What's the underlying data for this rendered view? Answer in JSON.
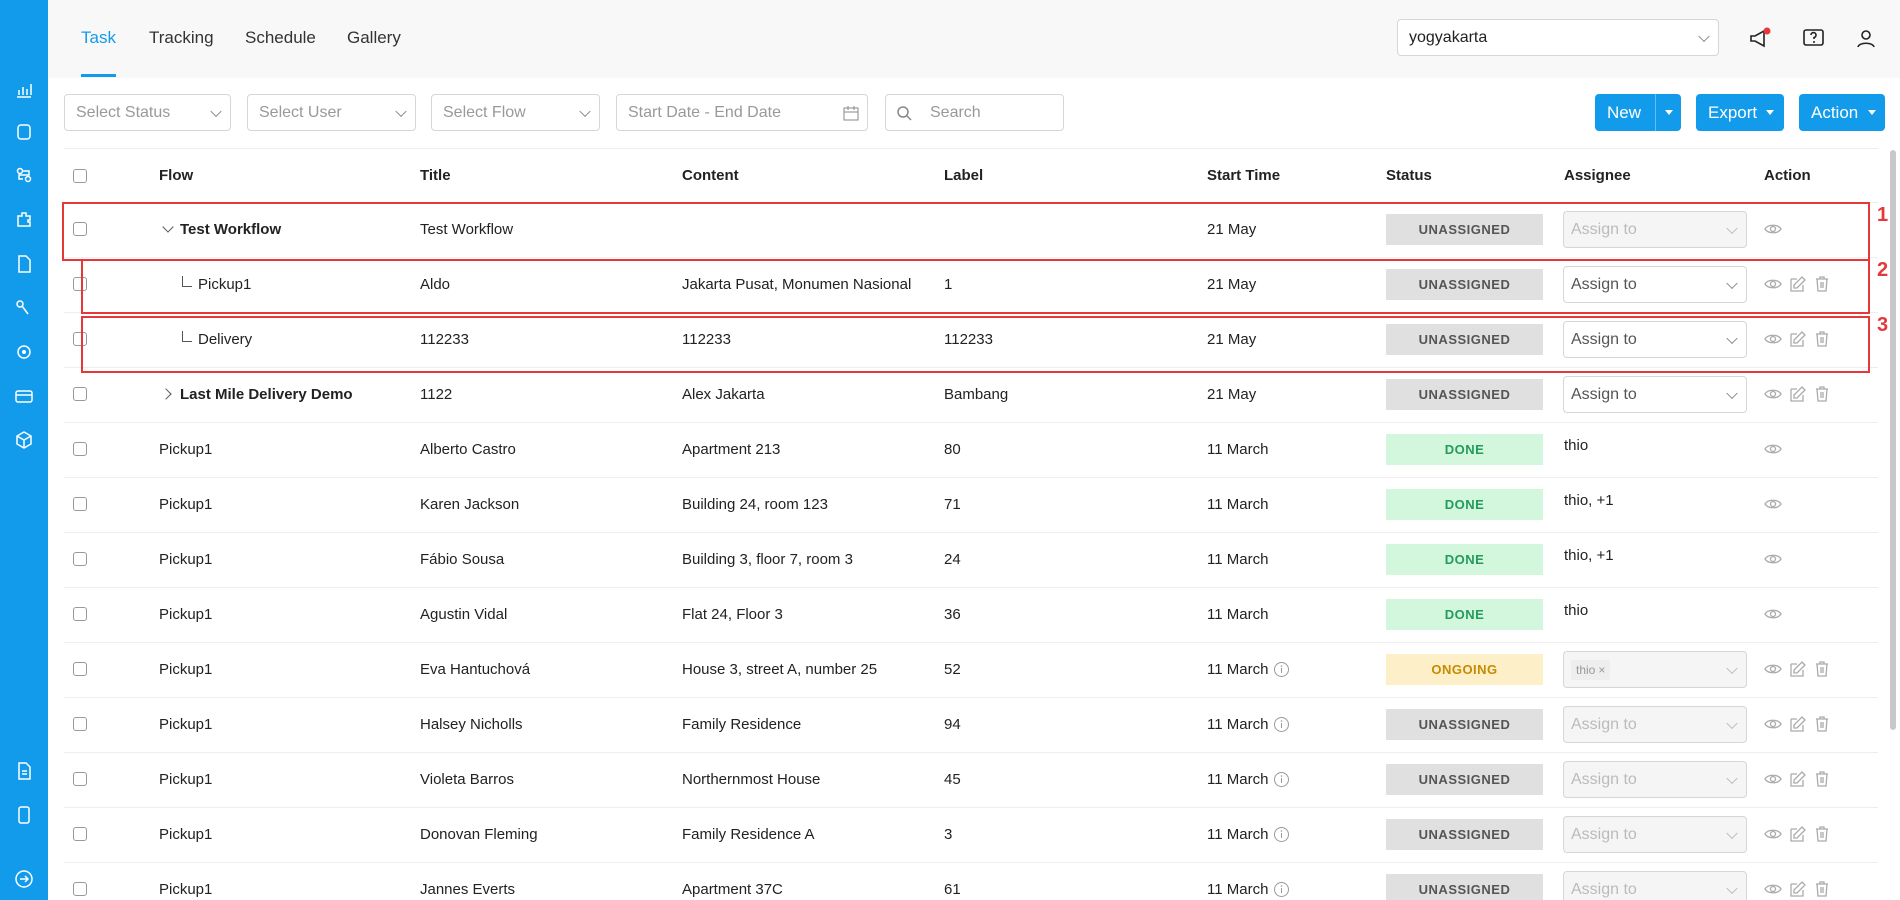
{
  "nav": {
    "tabs": [
      "Task",
      "Tracking",
      "Schedule",
      "Gallery"
    ],
    "active": 0,
    "location": "yogyakarta"
  },
  "filters": {
    "status": "Select Status",
    "user": "Select User",
    "flow": "Select Flow",
    "date": "Start Date - End Date",
    "search": "Search"
  },
  "buttons": {
    "new": "New",
    "export": "Export",
    "action": "Action"
  },
  "table": {
    "headers": [
      "Flow",
      "Title",
      "Content",
      "Label",
      "Start Time",
      "Status",
      "Assignee",
      "Action"
    ],
    "rows": [
      {
        "tree": "expanded",
        "flow": "Test Workflow",
        "title": "Test Workflow",
        "start_time": "21 May",
        "status": "UNASSIGNED",
        "tone": "grey",
        "assignee": "Assign to",
        "assignee_select": true,
        "assignee_disabled": true,
        "editable": false
      },
      {
        "tree": "child",
        "flow": "Pickup1",
        "title": "Aldo",
        "content": "Jakarta Pusat, Monumen Nasional",
        "label": "1",
        "start_time": "21 May",
        "status": "UNASSIGNED",
        "tone": "grey",
        "assignee": "Assign to",
        "assignee_select": true,
        "assignee_disabled": false,
        "editable": true
      },
      {
        "tree": "child",
        "flow": "Delivery",
        "title": "112233",
        "content": "112233",
        "label": "112233",
        "start_time": "21 May",
        "status": "UNASSIGNED",
        "tone": "grey",
        "assignee": "Assign to",
        "assignee_select": true,
        "assignee_disabled": false,
        "editable": true
      },
      {
        "tree": "collapsed",
        "flow": "Last Mile Delivery Demo",
        "title": "1122",
        "content": "Alex Jakarta",
        "label": "Bambang",
        "start_time": "21 May",
        "status": "UNASSIGNED",
        "tone": "grey",
        "assignee": "Assign to",
        "assignee_select": true,
        "assignee_disabled": false,
        "editable": true
      },
      {
        "flow": "Pickup1",
        "title": "Alberto Castro",
        "content": "Apartment 213",
        "label": "80",
        "start_time": "11 March",
        "status": "DONE",
        "tone": "green",
        "assignee": "thio",
        "editable": false
      },
      {
        "flow": "Pickup1",
        "title": "Karen Jackson",
        "content": "Building 24, room 123",
        "label": "71",
        "start_time": "11 March",
        "status": "DONE",
        "tone": "green",
        "assignee": "thio, +1",
        "editable": false
      },
      {
        "flow": "Pickup1",
        "title": "Fábio Sousa",
        "content": "Building 3, floor 7, room 3",
        "label": "24",
        "start_time": "11 March",
        "status": "DONE",
        "tone": "green",
        "assignee": "thio, +1",
        "editable": false
      },
      {
        "flow": "Pickup1",
        "title": "Agustin Vidal",
        "content": "Flat 24, Floor 3",
        "label": "36",
        "start_time": "11 March",
        "status": "DONE",
        "tone": "green",
        "assignee": "thio",
        "editable": false
      },
      {
        "flow": "Pickup1",
        "title": "Eva Hantuchová",
        "content": "House 3, street A, number 25",
        "label": "52",
        "start_time": "11 March",
        "info": true,
        "status": "ONGOING",
        "tone": "amber",
        "assignee": "thio",
        "assignee_tag": true,
        "assignee_select": true,
        "assignee_disabled": true,
        "editable": true
      },
      {
        "flow": "Pickup1",
        "title": "Halsey Nicholls",
        "content": "Family Residence",
        "label": "94",
        "start_time": "11 March",
        "info": true,
        "status": "UNASSIGNED",
        "tone": "grey",
        "assignee": "Assign to",
        "assignee_select": true,
        "assignee_disabled": true,
        "editable": true
      },
      {
        "flow": "Pickup1",
        "title": "Violeta Barros",
        "content": "Northernmost House",
        "label": "45",
        "start_time": "11 March",
        "info": true,
        "status": "UNASSIGNED",
        "tone": "grey",
        "assignee": "Assign to",
        "assignee_select": true,
        "assignee_disabled": true,
        "editable": true
      },
      {
        "flow": "Pickup1",
        "title": "Donovan Fleming",
        "content": "Family Residence A",
        "label": "3",
        "start_time": "11 March",
        "info": true,
        "status": "UNASSIGNED",
        "tone": "grey",
        "assignee": "Assign to",
        "assignee_select": true,
        "assignee_disabled": true,
        "editable": true
      },
      {
        "flow": "Pickup1",
        "title": "Jannes Everts",
        "content": "Apartment 37C",
        "label": "61",
        "start_time": "11 March",
        "info": true,
        "status": "UNASSIGNED",
        "tone": "grey",
        "assignee": "Assign to",
        "assignee_select": true,
        "assignee_disabled": true,
        "editable": true
      }
    ]
  },
  "annotations": [
    "1",
    "2",
    "3"
  ]
}
